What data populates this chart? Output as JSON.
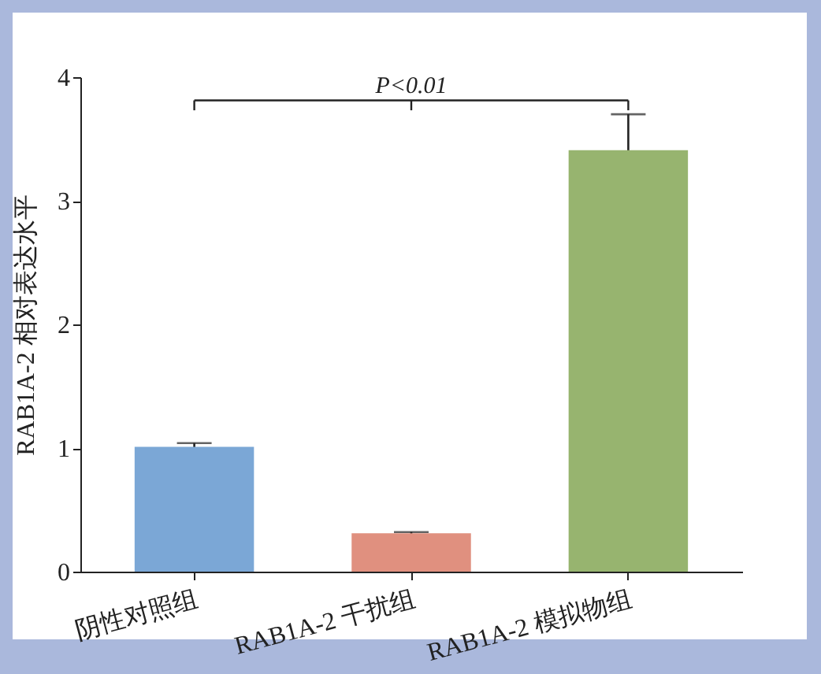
{
  "chart_data": {
    "type": "bar",
    "ylabel": "RAB1A-2 相对表达水平",
    "categories": [
      "阴性对照组",
      "RAB1A-2 干扰组",
      "RAB1A-2 模拟物组"
    ],
    "values": [
      1.01,
      0.31,
      3.41
    ],
    "colors": [
      "#7ba7d6",
      "#e0907f",
      "#97b46f"
    ],
    "errors": [
      0.03,
      0.01,
      0.29
    ],
    "ylim": [
      0,
      4
    ],
    "yticks": [
      0,
      1,
      2,
      3,
      4
    ],
    "annotations": [
      "P<0.01"
    ]
  }
}
